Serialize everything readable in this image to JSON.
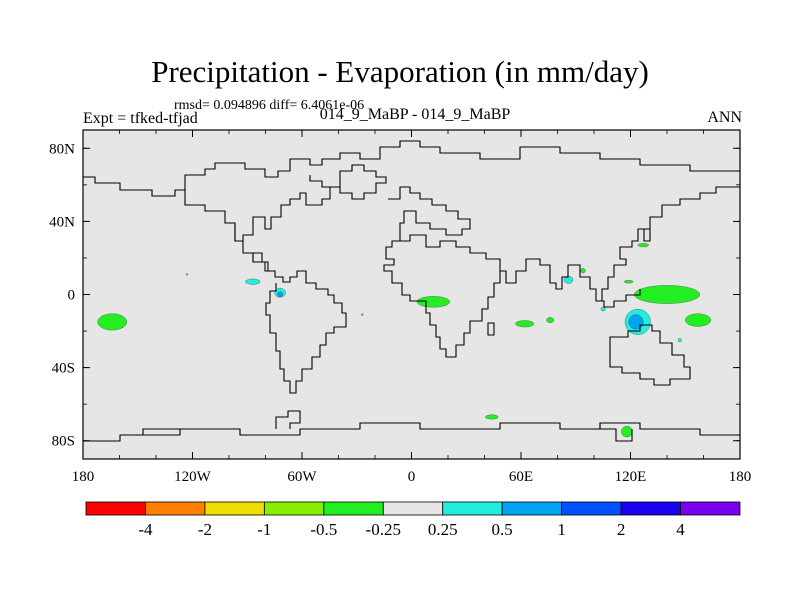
{
  "title": "Precipitation - Evaporation (in mm/day)",
  "stats_text": "rmsd= 0.094896 diff= 6.4061e-06",
  "left_string": "Expt = tfked-tfjad",
  "center_string": "014_9_MaBP - 014_9_MaBP",
  "right_string": "ANN",
  "colors": {
    "land": "#e6e6e6",
    "coast": "#000000",
    "green": "#22ee22",
    "cyan": "#22eedd",
    "blue": "#00a4f0"
  },
  "map": {
    "projection": "cylindrical-equidistant",
    "lon_range": [
      -180,
      180
    ],
    "lat_range": [
      -90,
      90
    ],
    "x_ticks": [
      {
        "lon": -180,
        "label": "180"
      },
      {
        "lon": -120,
        "label": "120W"
      },
      {
        "lon": -60,
        "label": "60W"
      },
      {
        "lon": 0,
        "label": "0"
      },
      {
        "lon": 60,
        "label": "60E"
      },
      {
        "lon": 120,
        "label": "120E"
      },
      {
        "lon": 180,
        "label": "180"
      }
    ],
    "y_ticks": [
      {
        "lat": 80,
        "label": "80N"
      },
      {
        "lat": 40,
        "label": "40N"
      },
      {
        "lat": 0,
        "label": "0"
      },
      {
        "lat": -40,
        "label": "40S"
      },
      {
        "lat": -80,
        "label": "80S"
      }
    ]
  },
  "field_patches": [
    {
      "name": "south-pacific",
      "lon": -164,
      "lat": -15,
      "rx": 8,
      "ry": 4.5,
      "color": "#22ee22"
    },
    {
      "name": "central-america",
      "lon": -87,
      "lat": 7,
      "rx": 4,
      "ry": 1.5,
      "color": "#22eedd"
    },
    {
      "name": "amazon-west",
      "lon": -72,
      "lat": 1,
      "rx": 3,
      "ry": 2.5,
      "color": "#22eedd"
    },
    {
      "name": "amazon-west-core",
      "lon": -72,
      "lat": 0,
      "rx": 1.5,
      "ry": 1.5,
      "color": "#00a4f0"
    },
    {
      "name": "central-africa",
      "lon": 12,
      "lat": -4,
      "rx": 9,
      "ry": 3,
      "color": "#22ee22"
    },
    {
      "name": "east-africa",
      "lon": 62,
      "lat": -16,
      "rx": 5,
      "ry": 1.8,
      "color": "#22ee22"
    },
    {
      "name": "indian-ocean",
      "lon": 76,
      "lat": -14,
      "rx": 2,
      "ry": 1.5,
      "color": "#22ee22"
    },
    {
      "name": "arabian-sea",
      "lon": 86,
      "lat": 8,
      "rx": 2.5,
      "ry": 2,
      "color": "#22eedd"
    },
    {
      "name": "north-india",
      "lon": 94,
      "lat": 13,
      "rx": 1.3,
      "ry": 1.3,
      "color": "#22ee22"
    },
    {
      "name": "sumatra",
      "lon": 105,
      "lat": -8,
      "rx": 1.2,
      "ry": 1,
      "color": "#22eedd"
    },
    {
      "name": "japan",
      "lon": 127,
      "lat": 27,
      "rx": 3,
      "ry": 1,
      "color": "#22ee22"
    },
    {
      "name": "philippines",
      "lon": 119,
      "lat": 7,
      "rx": 2.5,
      "ry": 0.8,
      "color": "#22ee22"
    },
    {
      "name": "west-pacific",
      "lon": 140,
      "lat": 0,
      "rx": 18,
      "ry": 5,
      "color": "#22ee22"
    },
    {
      "name": "new-guinea",
      "lon": 124,
      "lat": -15,
      "rx": 7,
      "ry": 7,
      "color": "#22eedd"
    },
    {
      "name": "new-guinea-core",
      "lon": 123,
      "lat": -15,
      "rx": 4,
      "ry": 4,
      "color": "#00a4f0"
    },
    {
      "name": "coral-sea",
      "lon": 157,
      "lat": -14,
      "rx": 7,
      "ry": 3.5,
      "color": "#22ee22"
    },
    {
      "name": "queensland",
      "lon": 147,
      "lat": -25,
      "rx": 1,
      "ry": 1,
      "color": "#22eedd"
    },
    {
      "name": "antarctic-atlantic",
      "lon": 44,
      "lat": -67,
      "rx": 3.5,
      "ry": 1.2,
      "color": "#22ee22"
    },
    {
      "name": "antarctic-pacific",
      "lon": 118,
      "lat": -75,
      "rx": 3,
      "ry": 3,
      "color": "#22ee22"
    },
    {
      "name": "north-pacific",
      "lon": -123,
      "lat": 11,
      "rx": 0.5,
      "ry": 0.5,
      "color": "#22eedd"
    },
    {
      "name": "south-america-east",
      "lon": -27,
      "lat": -11,
      "rx": 0.5,
      "ry": 0.5,
      "color": "#22ee22"
    }
  ],
  "colorbar": {
    "colors": [
      "#ff0000",
      "#ff7f00",
      "#eedd00",
      "#88ee00",
      "#22ee22",
      "#e6e6e6",
      "#22eedd",
      "#00a4f0",
      "#0050ff",
      "#1a00ee",
      "#7a00ee"
    ],
    "labels": [
      "-4",
      "-2",
      "-1",
      "-0.5",
      "-0.25",
      "0.25",
      "0.5",
      "1",
      "2",
      "4"
    ]
  }
}
